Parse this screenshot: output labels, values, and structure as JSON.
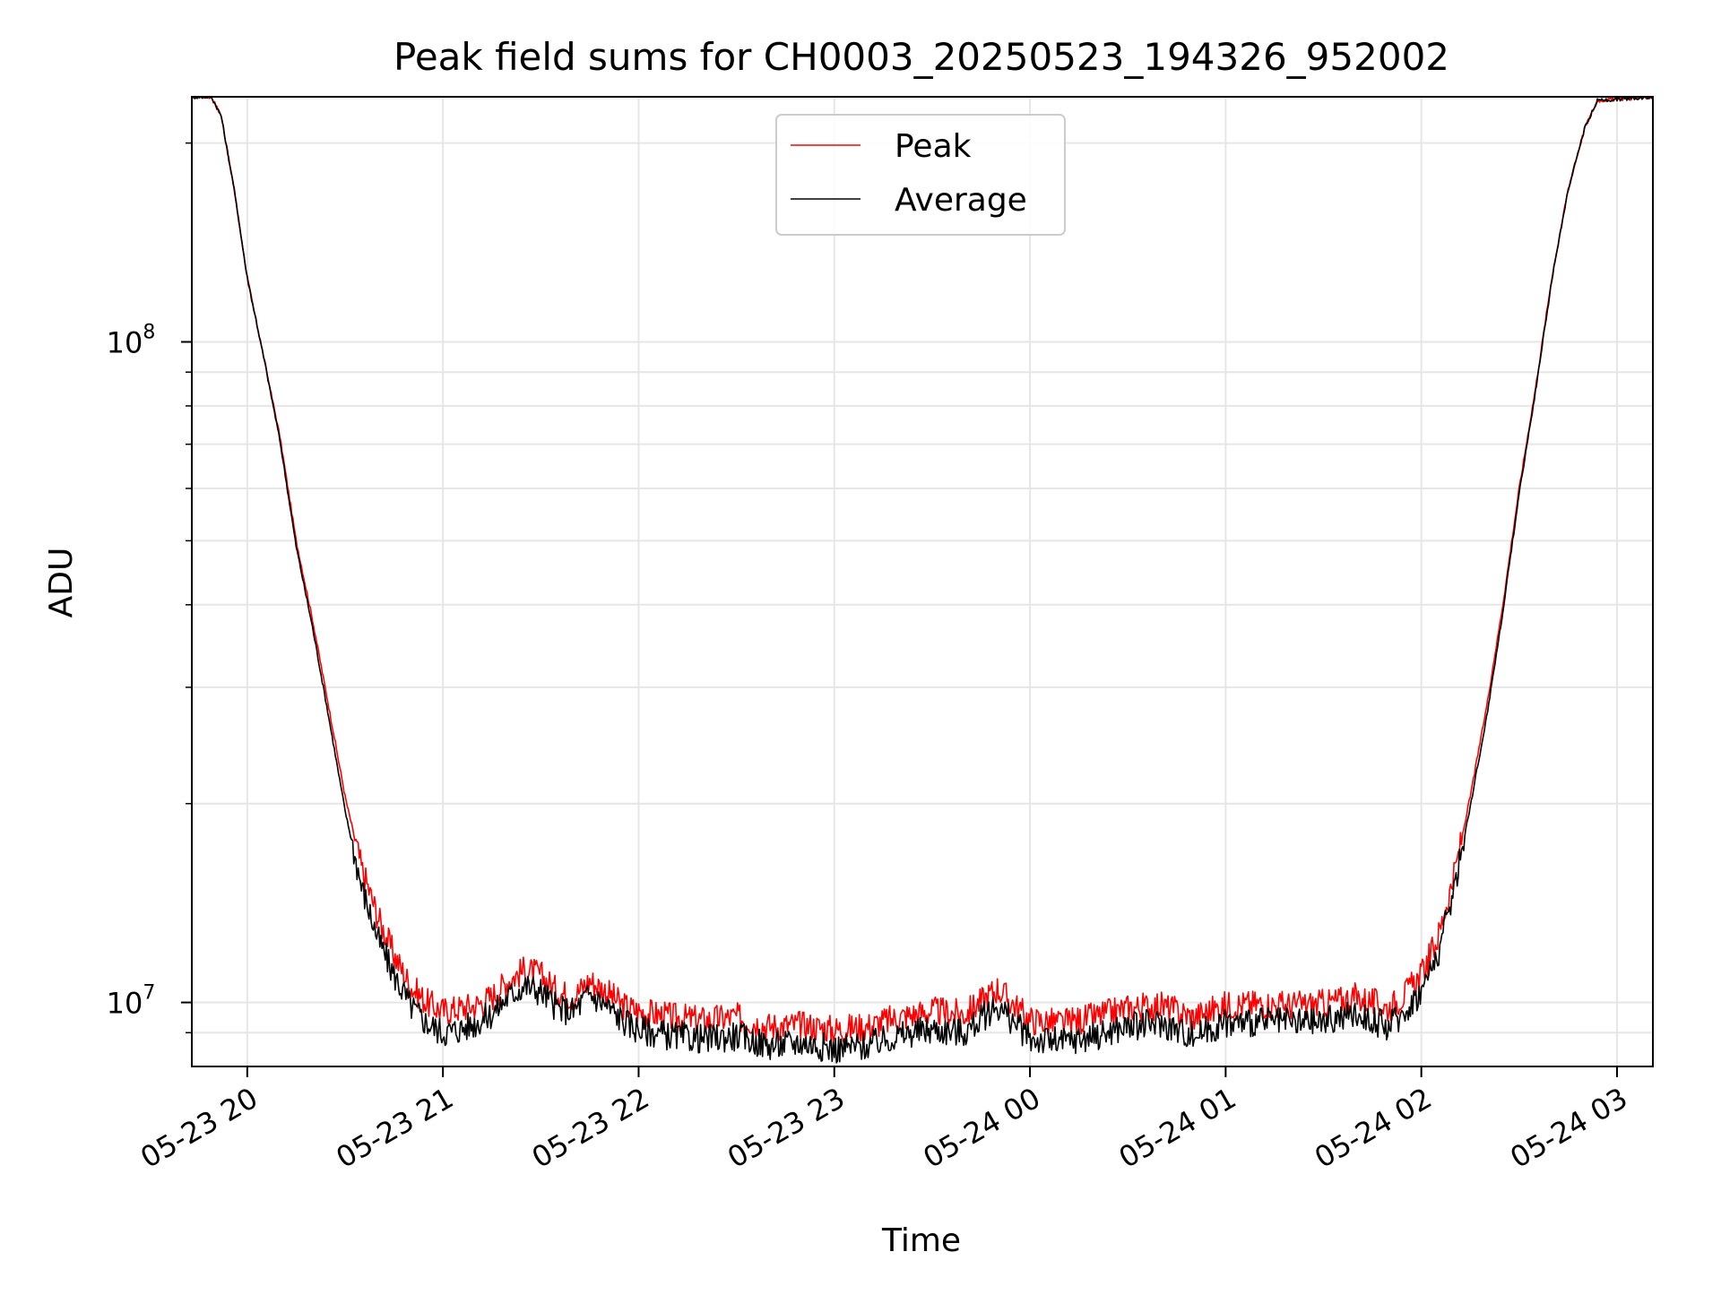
{
  "chart_data": {
    "type": "line",
    "title": "Peak field sums for CH0003_20250523_194326_952002",
    "xlabel": "Time",
    "ylabel": "ADU",
    "y_scale": "log",
    "ylim": [
      8000000.0,
      235000000.0
    ],
    "xlim": [
      "2025-05-23 19:43",
      "2025-05-24 03:11"
    ],
    "grid": true,
    "legend_position": "upper center",
    "x_ticks": [
      {
        "value": "2025-05-23 20:00",
        "label": "05-23 20"
      },
      {
        "value": "2025-05-23 21:00",
        "label": "05-23 21"
      },
      {
        "value": "2025-05-23 22:00",
        "label": "05-23 22"
      },
      {
        "value": "2025-05-23 23:00",
        "label": "05-23 23"
      },
      {
        "value": "2025-05-24 00:00",
        "label": "05-24 00"
      },
      {
        "value": "2025-05-24 01:00",
        "label": "05-24 01"
      },
      {
        "value": "2025-05-24 02:00",
        "label": "05-24 02"
      },
      {
        "value": "2025-05-24 03:00",
        "label": "05-24 03"
      }
    ],
    "y_major_ticks": [
      {
        "value": 10000000,
        "base": "10",
        "exp": "7"
      },
      {
        "value": 100000000,
        "base": "10",
        "exp": "8"
      }
    ],
    "y_minor_ticks": [
      9000000,
      20000000,
      30000000,
      40000000,
      50000000,
      60000000,
      70000000,
      80000000,
      90000000,
      200000000
    ],
    "series": [
      {
        "name": "Peak",
        "color": "#ff0000",
        "points": [
          [
            "2025-05-23 19:43",
            235000000
          ],
          [
            "2025-05-23 19:49",
            235000000
          ],
          [
            "2025-05-23 19:52",
            220000000
          ],
          [
            "2025-05-23 19:56",
            170000000
          ],
          [
            "2025-05-23 20:00",
            125000000
          ],
          [
            "2025-05-23 20:05",
            95000000
          ],
          [
            "2025-05-23 20:10",
            72000000
          ],
          [
            "2025-05-23 20:15",
            50000000
          ],
          [
            "2025-05-23 20:20",
            38000000
          ],
          [
            "2025-05-23 20:25",
            28000000
          ],
          [
            "2025-05-23 20:30",
            20500000
          ],
          [
            "2025-05-23 20:35",
            16000000
          ],
          [
            "2025-05-23 20:40",
            13500000
          ],
          [
            "2025-05-23 20:45",
            11800000
          ],
          [
            "2025-05-23 20:50",
            10600000
          ],
          [
            "2025-05-23 20:55",
            10000000
          ],
          [
            "2025-05-23 21:00",
            9700000
          ],
          [
            "2025-05-23 21:05",
            9800000
          ],
          [
            "2025-05-23 21:10",
            9900000
          ],
          [
            "2025-05-23 21:15",
            10200000
          ],
          [
            "2025-05-23 21:20",
            10800000
          ],
          [
            "2025-05-23 21:25",
            11200000
          ],
          [
            "2025-05-23 21:30",
            11000000
          ],
          [
            "2025-05-23 21:35",
            10400000
          ],
          [
            "2025-05-23 21:40",
            10200000
          ],
          [
            "2025-05-23 21:45",
            10800000
          ],
          [
            "2025-05-23 21:50",
            10400000
          ],
          [
            "2025-05-23 21:55",
            9900000
          ],
          [
            "2025-05-23 22:00",
            9700000
          ],
          [
            "2025-05-23 22:10",
            9500000
          ],
          [
            "2025-05-23 22:20",
            9400000
          ],
          [
            "2025-05-23 22:30",
            9500000
          ],
          [
            "2025-05-23 22:40",
            9200000
          ],
          [
            "2025-05-23 22:50",
            9250000
          ],
          [
            "2025-05-23 23:00",
            9100000
          ],
          [
            "2025-05-23 23:10",
            9200000
          ],
          [
            "2025-05-23 23:20",
            9500000
          ],
          [
            "2025-05-23 23:30",
            9700000
          ],
          [
            "2025-05-23 23:40",
            9600000
          ],
          [
            "2025-05-23 23:50",
            10500000
          ],
          [
            "2025-05-24 00:00",
            9400000
          ],
          [
            "2025-05-24 00:10",
            9300000
          ],
          [
            "2025-05-24 00:20",
            9500000
          ],
          [
            "2025-05-24 00:30",
            9800000
          ],
          [
            "2025-05-24 00:40",
            9900000
          ],
          [
            "2025-05-24 00:50",
            9500000
          ],
          [
            "2025-05-24 01:00",
            9900000
          ],
          [
            "2025-05-24 01:10",
            9950000
          ],
          [
            "2025-05-24 01:20",
            9900000
          ],
          [
            "2025-05-24 01:30",
            9950000
          ],
          [
            "2025-05-24 01:40",
            10200000
          ],
          [
            "2025-05-24 01:50",
            9800000
          ],
          [
            "2025-05-24 01:55",
            10300000
          ],
          [
            "2025-05-24 02:00",
            11000000
          ],
          [
            "2025-05-24 02:05",
            12500000
          ],
          [
            "2025-05-24 02:10",
            15500000
          ],
          [
            "2025-05-24 02:15",
            20500000
          ],
          [
            "2025-05-24 02:20",
            28000000
          ],
          [
            "2025-05-24 02:25",
            40000000
          ],
          [
            "2025-05-24 02:30",
            60000000
          ],
          [
            "2025-05-24 02:35",
            85000000
          ],
          [
            "2025-05-24 02:40",
            125000000
          ],
          [
            "2025-05-24 02:45",
            170000000
          ],
          [
            "2025-05-24 02:50",
            210000000
          ],
          [
            "2025-05-24 02:54",
            232000000
          ],
          [
            "2025-05-24 03:11",
            235000000
          ]
        ]
      },
      {
        "name": "Average",
        "color": "#000000",
        "points": [
          [
            "2025-05-23 19:43",
            235000000
          ],
          [
            "2025-05-23 19:49",
            235000000
          ],
          [
            "2025-05-23 19:52",
            220000000
          ],
          [
            "2025-05-23 19:56",
            170000000
          ],
          [
            "2025-05-23 20:00",
            125000000
          ],
          [
            "2025-05-23 20:05",
            95000000
          ],
          [
            "2025-05-23 20:10",
            71000000
          ],
          [
            "2025-05-23 20:15",
            49000000
          ],
          [
            "2025-05-23 20:20",
            37000000
          ],
          [
            "2025-05-23 20:25",
            27000000
          ],
          [
            "2025-05-23 20:30",
            19500000
          ],
          [
            "2025-05-23 20:35",
            15000000
          ],
          [
            "2025-05-23 20:40",
            12500000
          ],
          [
            "2025-05-23 20:45",
            11000000
          ],
          [
            "2025-05-23 20:50",
            9900000
          ],
          [
            "2025-05-23 20:55",
            9300000
          ],
          [
            "2025-05-23 21:00",
            9000000
          ],
          [
            "2025-05-23 21:05",
            9100000
          ],
          [
            "2025-05-23 21:10",
            9300000
          ],
          [
            "2025-05-23 21:15",
            9600000
          ],
          [
            "2025-05-23 21:20",
            10200000
          ],
          [
            "2025-05-23 21:25",
            10600000
          ],
          [
            "2025-05-23 21:30",
            10400000
          ],
          [
            "2025-05-23 21:35",
            9800000
          ],
          [
            "2025-05-23 21:40",
            9700000
          ],
          [
            "2025-05-23 21:45",
            10300000
          ],
          [
            "2025-05-23 21:50",
            9900000
          ],
          [
            "2025-05-23 21:55",
            9400000
          ],
          [
            "2025-05-23 22:00",
            9100000
          ],
          [
            "2025-05-23 22:10",
            8900000
          ],
          [
            "2025-05-23 22:20",
            8800000
          ],
          [
            "2025-05-23 22:30",
            8900000
          ],
          [
            "2025-05-23 22:40",
            8600000
          ],
          [
            "2025-05-23 22:50",
            8700000
          ],
          [
            "2025-05-23 23:00",
            8500000
          ],
          [
            "2025-05-23 23:10",
            8600000
          ],
          [
            "2025-05-23 23:20",
            8900000
          ],
          [
            "2025-05-23 23:30",
            9100000
          ],
          [
            "2025-05-23 23:40",
            9000000
          ],
          [
            "2025-05-23 23:50",
            9900000
          ],
          [
            "2025-05-24 00:00",
            8800000
          ],
          [
            "2025-05-24 00:10",
            8700000
          ],
          [
            "2025-05-24 00:20",
            8900000
          ],
          [
            "2025-05-24 00:30",
            9200000
          ],
          [
            "2025-05-24 00:40",
            9300000
          ],
          [
            "2025-05-24 00:50",
            8900000
          ],
          [
            "2025-05-24 01:00",
            9300000
          ],
          [
            "2025-05-24 01:10",
            9350000
          ],
          [
            "2025-05-24 01:20",
            9300000
          ],
          [
            "2025-05-24 01:30",
            9350000
          ],
          [
            "2025-05-24 01:40",
            9600000
          ],
          [
            "2025-05-24 01:50",
            9200000
          ],
          [
            "2025-05-24 01:55",
            9700000
          ],
          [
            "2025-05-24 02:00",
            10400000
          ],
          [
            "2025-05-24 02:05",
            11800000
          ],
          [
            "2025-05-24 02:10",
            14800000
          ],
          [
            "2025-05-24 02:15",
            19800000
          ],
          [
            "2025-05-24 02:20",
            27000000
          ],
          [
            "2025-05-24 02:25",
            39000000
          ],
          [
            "2025-05-24 02:30",
            59000000
          ],
          [
            "2025-05-24 02:35",
            84000000
          ],
          [
            "2025-05-24 02:40",
            124000000
          ],
          [
            "2025-05-24 02:45",
            170000000
          ],
          [
            "2025-05-24 02:50",
            210000000
          ],
          [
            "2025-05-24 02:54",
            232000000
          ],
          [
            "2025-05-24 03:11",
            235000000
          ]
        ]
      }
    ]
  }
}
